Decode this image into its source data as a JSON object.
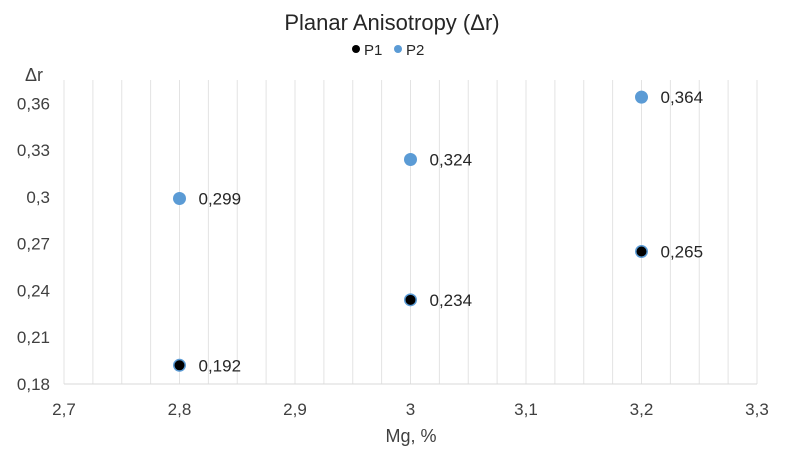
{
  "chart_data": {
    "type": "scatter",
    "title": "Planar Anisotropy (Δr)",
    "xlabel": "Mg, %",
    "ylabel": "Δr",
    "xlim": [
      2.7,
      3.3
    ],
    "ylim": [
      0.18,
      0.375
    ],
    "x_ticks": [
      "2,7",
      "2,8",
      "2,9",
      "3",
      "3,1",
      "3,2",
      "3,3"
    ],
    "y_ticks": [
      "0,18",
      "0,21",
      "0,24",
      "0,27",
      "0,3",
      "0,33",
      "0,36"
    ],
    "grid": "vertical",
    "legend_position": "top",
    "series": [
      {
        "name": "P1",
        "color": "#000000",
        "x": [
          2.8,
          3.0,
          3.2
        ],
        "y": [
          0.192,
          0.234,
          0.265
        ],
        "labels": [
          "0,192",
          "0,234",
          "0,265"
        ]
      },
      {
        "name": "P2",
        "color": "#5b9bd5",
        "x": [
          2.8,
          3.0,
          3.2
        ],
        "y": [
          0.299,
          0.324,
          0.364
        ],
        "labels": [
          "0,299",
          "0,324",
          "0,364"
        ]
      }
    ]
  }
}
